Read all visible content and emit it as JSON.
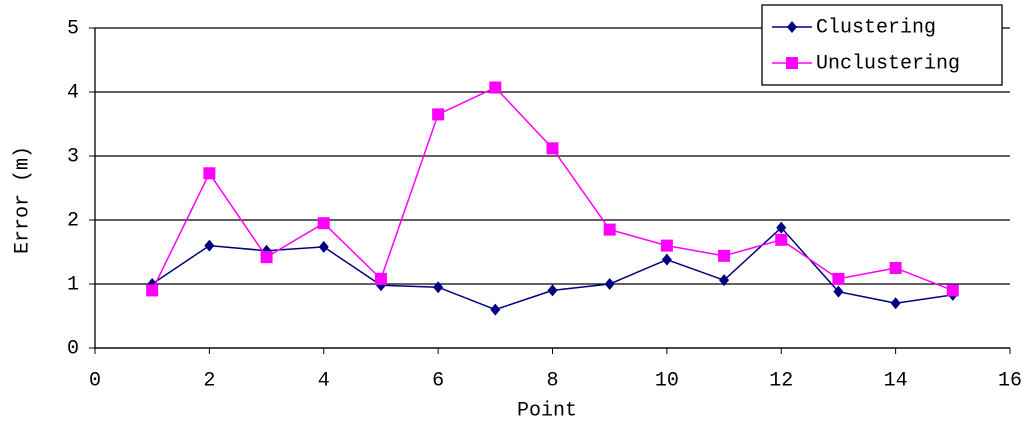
{
  "chart_data": {
    "type": "line",
    "x_label": "Point",
    "y_label": "Error (m)",
    "x": [
      1,
      2,
      3,
      4,
      5,
      6,
      7,
      8,
      9,
      10,
      11,
      12,
      13,
      14,
      15
    ],
    "series": [
      {
        "name": "Clustering",
        "color": "#000080",
        "marker": "diamond",
        "values": [
          1.0,
          1.6,
          1.52,
          1.58,
          0.98,
          0.95,
          0.6,
          0.9,
          1.0,
          1.38,
          1.06,
          1.88,
          0.88,
          0.7,
          0.83
        ]
      },
      {
        "name": "Unclustering",
        "color": "#ff00ff",
        "marker": "square",
        "values": [
          0.9,
          2.73,
          1.42,
          1.95,
          1.08,
          3.65,
          4.07,
          3.12,
          1.85,
          1.6,
          1.44,
          1.69,
          1.08,
          1.25,
          0.9
        ]
      }
    ],
    "xlim": [
      0,
      16
    ],
    "xticks": [
      0,
      2,
      4,
      6,
      8,
      10,
      12,
      14,
      16
    ],
    "ylim": [
      0,
      5
    ],
    "yticks": [
      0,
      1,
      2,
      3,
      4,
      5
    ],
    "grid": true,
    "legend": "top-right"
  }
}
